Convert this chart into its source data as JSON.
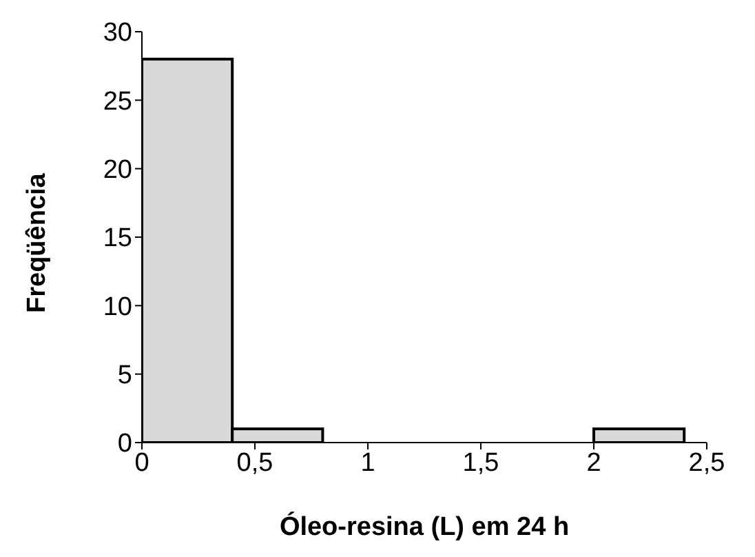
{
  "chart_data": {
    "type": "histogram",
    "xlabel": "Óleo-resina (L) em 24 h",
    "ylabel": "Freqüência",
    "bins": [
      0,
      0.4,
      0.8,
      1.2,
      1.6,
      2.0,
      2.4
    ],
    "values": [
      28,
      1,
      0,
      0,
      0,
      1
    ],
    "color": "#d9d9d9",
    "xlim": [
      0,
      2.5
    ],
    "xticks": [
      0,
      {
        "value": 0.5,
        "label": "0,5"
      },
      1,
      {
        "value": 1.5,
        "label": "1,5"
      },
      2,
      {
        "value": 2.5,
        "label": "2,5"
      }
    ],
    "ylim": [
      0,
      30
    ],
    "yticks": [
      0,
      5,
      10,
      15,
      20,
      25,
      30
    ],
    "grid": false
  }
}
